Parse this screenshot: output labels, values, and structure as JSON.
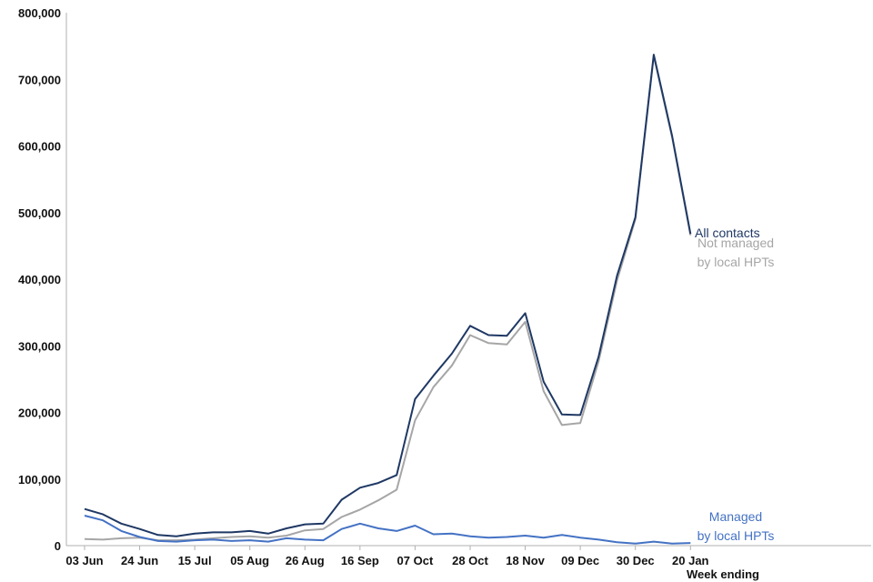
{
  "chart_data": {
    "type": "line",
    "xlabel": "Week ending",
    "ylabel": "",
    "ylim": [
      0,
      800000
    ],
    "yticks": [
      0,
      100000,
      200000,
      300000,
      400000,
      500000,
      600000,
      700000,
      800000
    ],
    "ytick_labels": [
      "0",
      "100,000",
      "200,000",
      "300,000",
      "400,000",
      "500,000",
      "600,000",
      "700,000",
      "800,000"
    ],
    "x": [
      "03 Jun",
      "10 Jun",
      "17 Jun",
      "24 Jun",
      "01 Jul",
      "08 Jul",
      "15 Jul",
      "22 Jul",
      "29 Jul",
      "05 Aug",
      "12 Aug",
      "19 Aug",
      "26 Aug",
      "02 Sep",
      "09 Sep",
      "16 Sep",
      "23 Sep",
      "30 Sep",
      "07 Oct",
      "14 Oct",
      "21 Oct",
      "28 Oct",
      "04 Nov",
      "11 Nov",
      "18 Nov",
      "25 Nov",
      "02 Dec",
      "09 Dec",
      "16 Dec",
      "23 Dec",
      "30 Dec",
      "06 Jan",
      "13 Jan",
      "20 Jan"
    ],
    "xtick_labels": [
      {
        "index": 0,
        "label": "03 Jun"
      },
      {
        "index": 3,
        "label": "24 Jun"
      },
      {
        "index": 6,
        "label": "15 Jul"
      },
      {
        "index": 9,
        "label": "05 Aug"
      },
      {
        "index": 12,
        "label": "26 Aug"
      },
      {
        "index": 15,
        "label": "16 Sep"
      },
      {
        "index": 18,
        "label": "07 Oct"
      },
      {
        "index": 21,
        "label": "28 Oct"
      },
      {
        "index": 24,
        "label": "18 Nov"
      },
      {
        "index": 27,
        "label": "09 Dec"
      },
      {
        "index": 30,
        "label": "30 Dec"
      },
      {
        "index": 33,
        "label": "20 Jan"
      }
    ],
    "series": [
      {
        "name": "All contacts",
        "color": "#1f3864",
        "values": [
          55000,
          47000,
          33000,
          25000,
          16000,
          14000,
          18000,
          20000,
          20000,
          22000,
          18000,
          26000,
          32000,
          33000,
          69000,
          87000,
          94000,
          106000,
          220000,
          255000,
          288000,
          330000,
          316000,
          315000,
          349000,
          246000,
          197000,
          196000,
          284000,
          405000,
          493000,
          737000,
          615000,
          468000
        ]
      },
      {
        "name": "Not managed by local HPTs",
        "label_lines": [
          "Not managed",
          "by local HPTs"
        ],
        "color": "#a6a6a6",
        "values": [
          10000,
          9000,
          11000,
          12000,
          8000,
          8000,
          9000,
          11000,
          13000,
          14000,
          12000,
          15000,
          23000,
          25000,
          43000,
          54000,
          68000,
          84000,
          188000,
          238000,
          270000,
          316000,
          304000,
          302000,
          336000,
          232000,
          181000,
          184000,
          277000,
          398000,
          490000,
          735000,
          613000,
          466000
        ]
      },
      {
        "name": "Managed by local HPTs",
        "label_lines": [
          "Managed",
          "by local HPTs"
        ],
        "color": "#4472c4",
        "values": [
          45000,
          38000,
          22000,
          13000,
          7000,
          6000,
          8000,
          9000,
          7000,
          8000,
          6000,
          11000,
          9000,
          8000,
          25000,
          33000,
          26000,
          22000,
          30000,
          17000,
          18000,
          14000,
          12000,
          13000,
          15000,
          12000,
          16000,
          12000,
          9000,
          5000,
          3000,
          6000,
          3000,
          4000
        ]
      }
    ],
    "legend": "inline labels at right end of lines",
    "grid": false
  }
}
